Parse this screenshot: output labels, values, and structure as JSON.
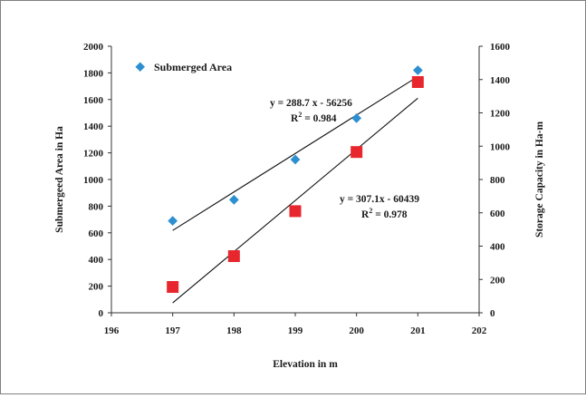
{
  "chart_data": {
    "type": "scatter",
    "title": "",
    "xlabel": "Elevation in m",
    "ylabel": "Submergeed Area in Ha",
    "y2label": "Storage Capacity in Ha-m",
    "xlim": [
      196,
      202
    ],
    "ylim": [
      0,
      2000
    ],
    "y2lim": [
      0,
      1600
    ],
    "x_ticks": [
      "196",
      "197",
      "198",
      "199",
      "200",
      "201",
      "202"
    ],
    "y_ticks": [
      "0",
      "200",
      "400",
      "600",
      "800",
      "1000",
      "1200",
      "1400",
      "1600",
      "1800",
      "2000"
    ],
    "y2_ticks": [
      "0",
      "200",
      "400",
      "600",
      "800",
      "1000",
      "1200",
      "1400",
      "1600"
    ],
    "legend": {
      "position": "top-left",
      "entries": [
        "Submerged Area"
      ]
    },
    "series": [
      {
        "name": "Submerged Area",
        "axis": "left",
        "marker": "diamond",
        "color": "#2e8fd0",
        "x": [
          197,
          198,
          199,
          200,
          201
        ],
        "y": [
          690,
          848,
          1150,
          1460,
          1820
        ]
      },
      {
        "axis": "right",
        "marker": "square",
        "color": "#e8262d",
        "x": [
          197,
          198,
          199,
          200,
          201
        ],
        "y": [
          155,
          340,
          610,
          965,
          1385
        ]
      }
    ],
    "trendlines": [
      {
        "axis": "left",
        "x_range": [
          197,
          201
        ],
        "slope": 288.7,
        "intercept": -56256,
        "equation": "y = 288.7 x - 56256",
        "r2": "0.984"
      },
      {
        "axis": "right",
        "x_range": [
          197,
          201
        ],
        "slope": 307.1,
        "intercept": -60439,
        "equation": "y = 307.1x - 60439",
        "r2": "0.978"
      }
    ]
  }
}
